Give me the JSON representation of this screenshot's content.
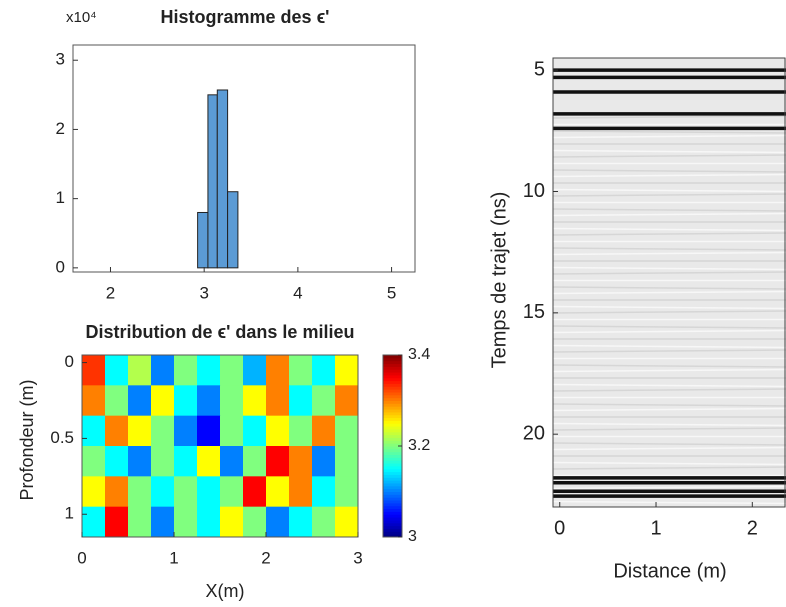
{
  "chart_data": [
    {
      "type": "histogram",
      "title": "Histogramme des ϵ'",
      "y_scale_label": "x10⁴",
      "bins": [
        2.93,
        3.04,
        3.14,
        3.25,
        3.36
      ],
      "values": [
        0.8,
        2.5,
        2.57,
        1.1
      ],
      "color": "#5b9bd5",
      "xlim": [
        1.6,
        5.25
      ],
      "xticks": [
        2,
        3,
        4,
        5
      ],
      "ylim": [
        -0.06,
        3.22
      ],
      "yticks": [
        0,
        1,
        2,
        3
      ]
    },
    {
      "type": "heatmap",
      "title": "Distribution de ϵ' dans le milieu",
      "x_label": "X(m)",
      "y_label": "Profondeur (m)",
      "xlim": [
        0,
        3
      ],
      "xticks": [
        0,
        1,
        2,
        3
      ],
      "ylim": [
        -0.05,
        1.15
      ],
      "yticks": [
        0,
        0.5,
        1
      ],
      "clim": [
        3,
        3.4
      ],
      "cticks": [
        3,
        3.2,
        3.4
      ],
      "z": [
        [
          3.33,
          3.15,
          3.22,
          3.1,
          3.2,
          3.15,
          3.2,
          3.12,
          3.3,
          3.2,
          3.15,
          3.25
        ],
        [
          3.3,
          3.2,
          3.1,
          3.25,
          3.15,
          3.1,
          3.2,
          3.25,
          3.3,
          3.15,
          3.2,
          3.3
        ],
        [
          3.15,
          3.3,
          3.25,
          3.2,
          3.1,
          3.05,
          3.2,
          3.15,
          3.25,
          3.2,
          3.3,
          3.2
        ],
        [
          3.2,
          3.15,
          3.1,
          3.2,
          3.15,
          3.25,
          3.1,
          3.2,
          3.35,
          3.3,
          3.1,
          3.2
        ],
        [
          3.25,
          3.3,
          3.2,
          3.15,
          3.2,
          3.15,
          3.2,
          3.35,
          3.25,
          3.3,
          3.15,
          3.2
        ],
        [
          3.15,
          3.35,
          3.2,
          3.1,
          3.2,
          3.15,
          3.25,
          3.2,
          3.1,
          3.15,
          3.2,
          3.25
        ]
      ]
    },
    {
      "type": "radargram",
      "x_label": "Distance (m)",
      "y_label": "Temps de trajet (ns)",
      "xlim": [
        -0.07,
        2.35
      ],
      "xticks": [
        0,
        1,
        2
      ],
      "ylim": [
        4.5,
        23
      ],
      "yticks": [
        5,
        10,
        15,
        20
      ],
      "reflectors": [
        5.0,
        5.3,
        5.9,
        6.8,
        7.4,
        21.8,
        22.0,
        22.35,
        22.55
      ],
      "color": "#111111"
    }
  ]
}
